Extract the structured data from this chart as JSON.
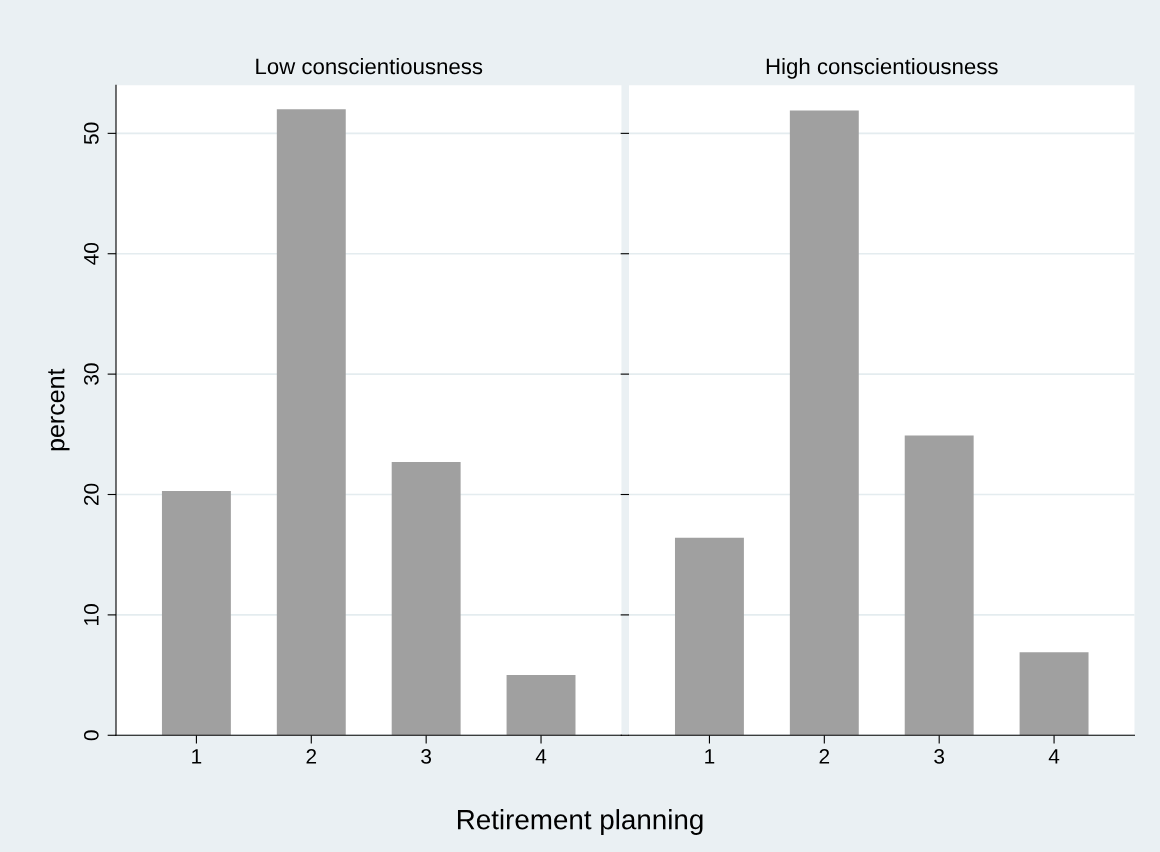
{
  "chart_data": [
    {
      "type": "bar",
      "title": "Low conscientiousness",
      "ylabel": "percent",
      "xlabel": "Retirement planning",
      "categories": [
        "1",
        "2",
        "3",
        "4"
      ],
      "values": [
        20.3,
        52.0,
        22.7,
        5.0
      ],
      "color": "#a0a0a0",
      "ylim": [
        0,
        54
      ],
      "yticks": [
        0,
        10,
        20,
        30,
        40,
        50
      ],
      "grid": "y"
    },
    {
      "type": "bar",
      "title": "High conscientiousness",
      "categories": [
        "1",
        "2",
        "3",
        "4"
      ],
      "values": [
        16.4,
        51.9,
        24.9,
        6.9
      ],
      "color": "#a0a0a0",
      "ylim": [
        0,
        54
      ],
      "yticks": [
        0,
        10,
        20,
        30,
        40,
        50
      ],
      "grid": "y",
      "tick_labels": "x"
    }
  ]
}
